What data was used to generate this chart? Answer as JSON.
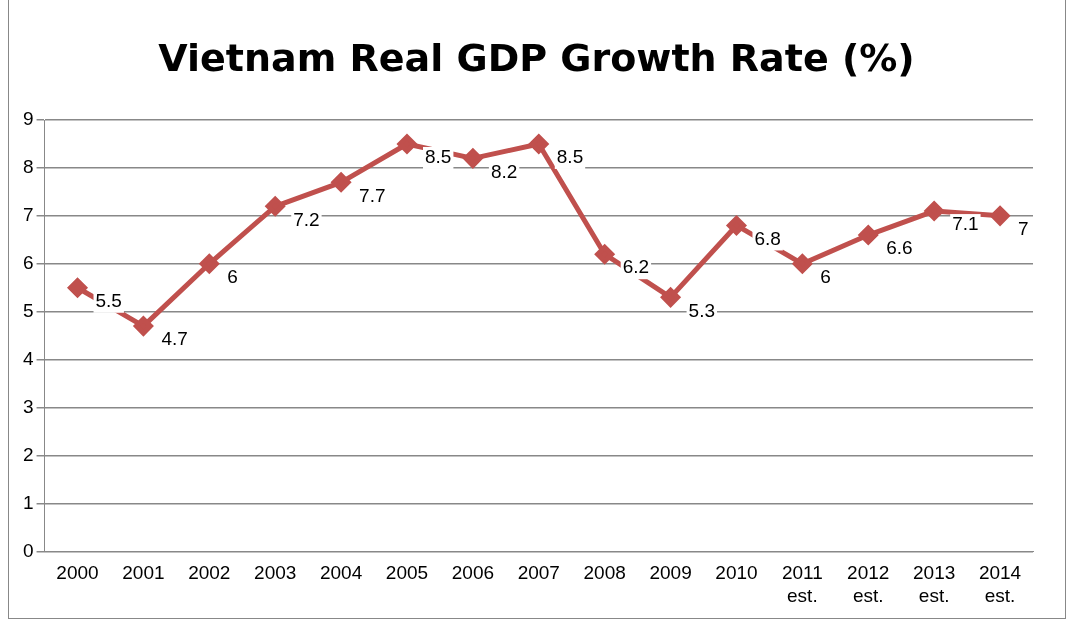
{
  "chart_data": {
    "type": "line",
    "title": "Vietnam Real GDP Growth Rate (%)",
    "categories": [
      "2000",
      "2001",
      "2002",
      "2003",
      "2004",
      "2005",
      "2006",
      "2007",
      "2008",
      "2009",
      "2010",
      "2011 est.",
      "2012 est.",
      "2013 est.",
      "2014 est."
    ],
    "series": [
      {
        "color": "#c0504d",
        "values": [
          5.5,
          4.7,
          6,
          7.2,
          7.7,
          8.5,
          8.2,
          8.5,
          6.2,
          5.3,
          6.8,
          6,
          6.6,
          7.1,
          7
        ]
      }
    ],
    "ylim": [
      0,
      9
    ],
    "yticks": [
      0,
      1,
      2,
      3,
      4,
      5,
      6,
      7,
      8,
      9
    ],
    "grid": "y",
    "legend": false,
    "marker": "diamond",
    "line_style": "solid",
    "data_labels": true
  }
}
